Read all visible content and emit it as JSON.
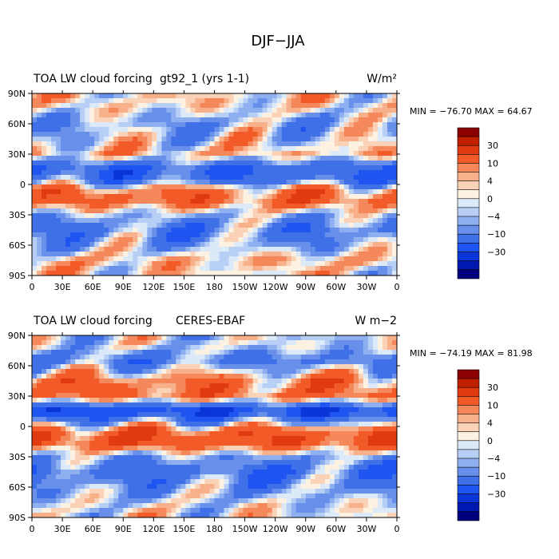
{
  "figure_title": "DJF−JJA",
  "chart_data": [
    {
      "type": "heatmap",
      "title_left": "TOA LW cloud forcing",
      "title_center": "gt92_1 (yrs 1-1)",
      "units": "W/m²",
      "stats": {
        "min": -76.7,
        "max": 64.67
      },
      "stats_text": "MIN = −76.70  MAX =  64.67",
      "x_ticks": [
        "0",
        "30E",
        "60E",
        "90E",
        "120E",
        "150E",
        "180",
        "150W",
        "120W",
        "90W",
        "60W",
        "30W",
        "0"
      ],
      "y_ticks": [
        "90N",
        "60N",
        "30N",
        "0",
        "30S",
        "60S",
        "90S"
      ],
      "zonal_profile": [
        {
          "lat": 80,
          "value": 2
        },
        {
          "lat": 60,
          "value": -6
        },
        {
          "lat": 45,
          "value": -2
        },
        {
          "lat": 30,
          "value": 4
        },
        {
          "lat": 15,
          "value": -20
        },
        {
          "lat": 5,
          "value": -15
        },
        {
          "lat": -5,
          "value": 8
        },
        {
          "lat": -15,
          "value": 14
        },
        {
          "lat": -30,
          "value": -4
        },
        {
          "lat": -45,
          "value": -12
        },
        {
          "lat": -60,
          "value": -6
        },
        {
          "lat": -75,
          "value": 4
        },
        {
          "lat": -85,
          "value": 2
        }
      ]
    },
    {
      "type": "heatmap",
      "title_left": "TOA LW cloud forcing",
      "title_center": "CERES-EBAF",
      "units": "W m−2",
      "stats": {
        "min": -74.19,
        "max": 81.98
      },
      "stats_text": "MIN = −74.19  MAX =  81.98",
      "x_ticks": [
        "0",
        "30E",
        "60E",
        "90E",
        "120E",
        "150E",
        "180",
        "150W",
        "120W",
        "90W",
        "60W",
        "30W",
        "0"
      ],
      "y_ticks": [
        "90N",
        "60N",
        "30N",
        "0",
        "30S",
        "60S",
        "90S"
      ],
      "zonal_profile": [
        {
          "lat": 80,
          "value": -2
        },
        {
          "lat": 65,
          "value": -12
        },
        {
          "lat": 45,
          "value": 10
        },
        {
          "lat": 30,
          "value": 12
        },
        {
          "lat": 15,
          "value": -30
        },
        {
          "lat": 5,
          "value": -8
        },
        {
          "lat": -5,
          "value": 15
        },
        {
          "lat": -15,
          "value": 18
        },
        {
          "lat": -30,
          "value": -6
        },
        {
          "lat": -45,
          "value": -15
        },
        {
          "lat": -60,
          "value": -8
        },
        {
          "lat": -75,
          "value": -2
        },
        {
          "lat": -85,
          "value": 0
        }
      ]
    }
  ],
  "colorbar": {
    "labels": [
      "30",
      "10",
      "4",
      "0",
      "−4",
      "−10",
      "−30"
    ],
    "colors": [
      "#8b0000",
      "#c02000",
      "#e03a10",
      "#f25a28",
      "#f5885a",
      "#f7b08a",
      "#fad2b8",
      "#fdf1e2",
      "#dce9f8",
      "#b8cff5",
      "#8fb0f0",
      "#6890ea",
      "#4070e8",
      "#1e55f0",
      "#0a35d8",
      "#0018b0",
      "#00007f"
    ]
  }
}
